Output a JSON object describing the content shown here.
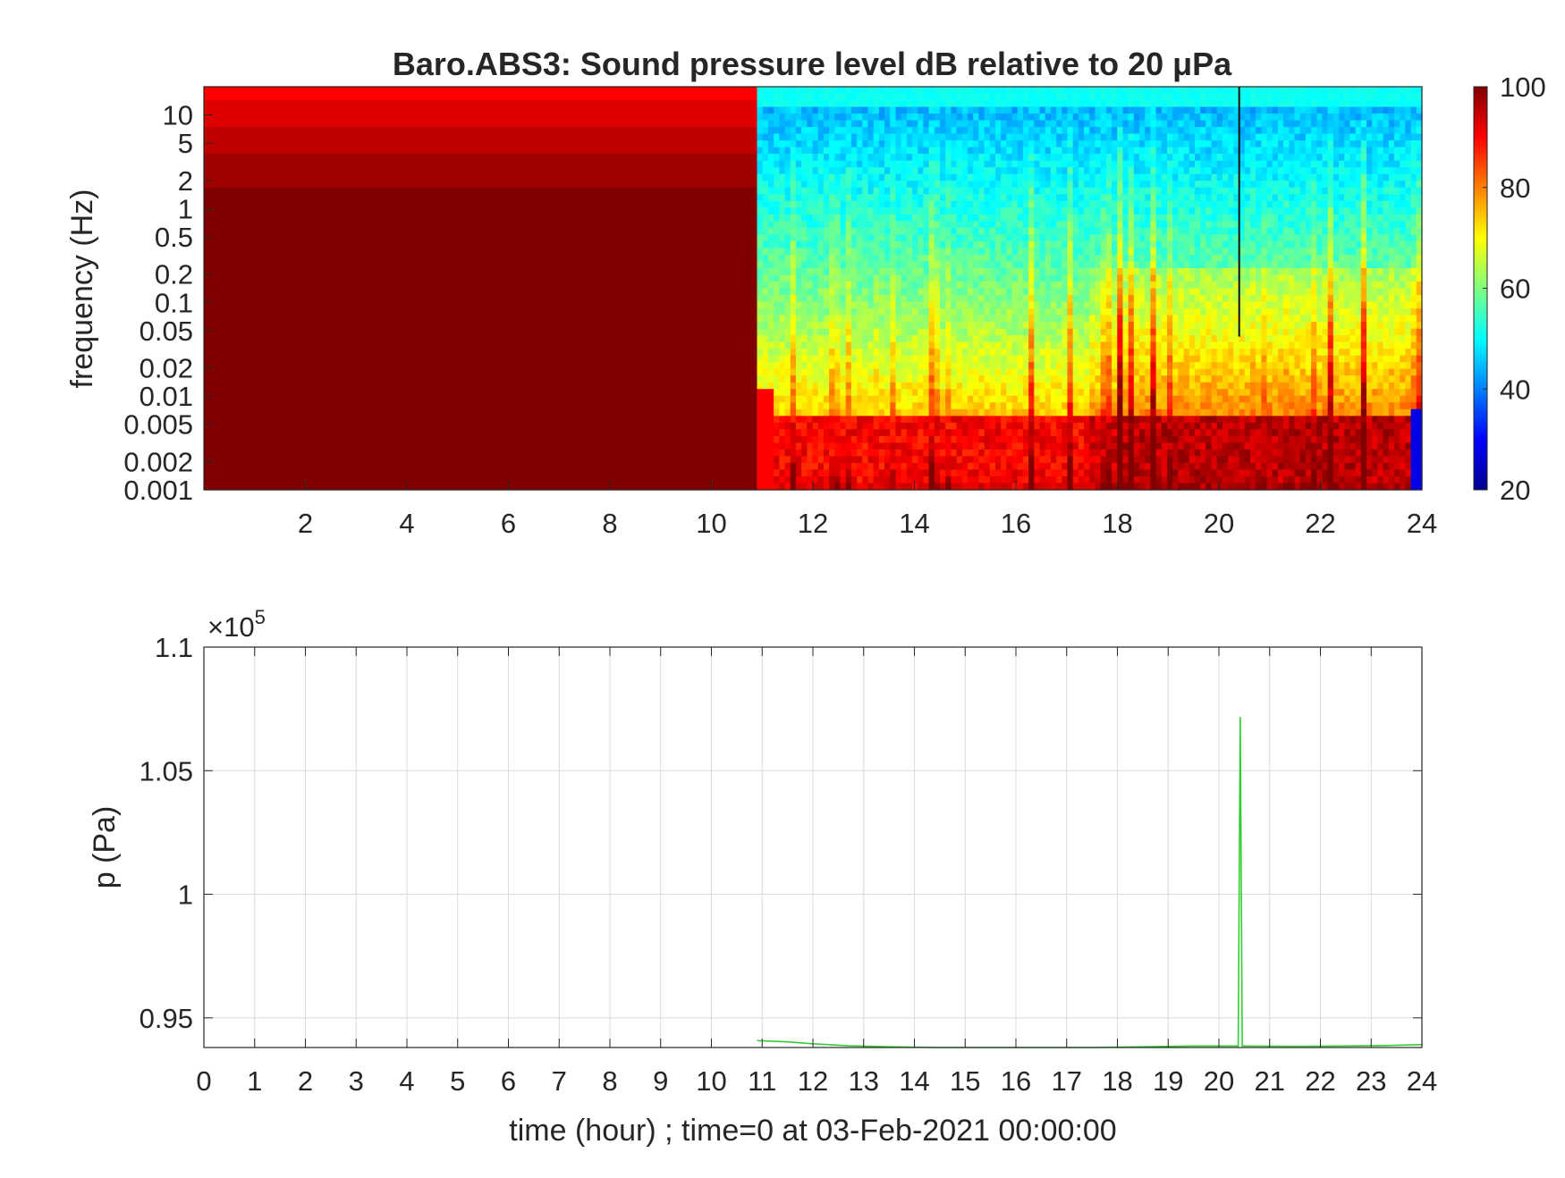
{
  "chart_data": [
    {
      "type": "heatmap",
      "title": "Baro.ABS3: Sound pressure level dB relative to 20 μPa",
      "ylabel": "frequency (Hz)",
      "xlabel": "",
      "xlim": [
        0,
        24
      ],
      "x_ticks": [
        2,
        4,
        6,
        8,
        10,
        12,
        14,
        16,
        18,
        20,
        22,
        24
      ],
      "y_scale": "log",
      "ylim": [
        0.001,
        20
      ],
      "y_ticks": [
        0.001,
        0.002,
        0.005,
        0.01,
        0.02,
        0.05,
        0.1,
        0.2,
        0.5,
        1,
        2,
        5,
        10
      ],
      "y_tick_labels": [
        "0.001",
        "0.002",
        "0.005",
        "0.01",
        "0.02",
        "0.05",
        "0.1",
        "0.2",
        "0.5",
        "1",
        "2",
        "5",
        "10"
      ],
      "colormap": "jet",
      "colorbar": {
        "min": 20,
        "max": 100,
        "ticks": [
          20,
          40,
          60,
          80,
          100
        ]
      },
      "data_start_hour": 10.9,
      "spike_hour": 20.4,
      "description_values": {
        "before_data_level_db": 100,
        "high_freq_band_level_db": 90
      }
    },
    {
      "type": "line",
      "title": "",
      "xlabel": "time (hour) ; time=0 at 03-Feb-2021 00:00:00",
      "ylabel": "p (Pa)",
      "xlim": [
        0,
        24
      ],
      "ylim": [
        0.938,
        1.1
      ],
      "y_multiplier_label": "×10",
      "y_multiplier_exp": "5",
      "x_ticks": [
        0,
        1,
        2,
        3,
        4,
        5,
        6,
        7,
        8,
        9,
        10,
        11,
        12,
        13,
        14,
        15,
        16,
        17,
        18,
        19,
        20,
        21,
        22,
        23,
        24
      ],
      "y_ticks": [
        0.95,
        1,
        1.05,
        1.1
      ],
      "y_tick_labels": [
        "0.95",
        "1",
        "1.05",
        "1.1"
      ],
      "grid": true,
      "series": [
        {
          "color": "#33cc33",
          "x": [
            10.9,
            11.5,
            12.0,
            12.7,
            13.5,
            14.5,
            15.5,
            16.5,
            17.5,
            18.5,
            19.5,
            20.38,
            20.42,
            20.46,
            20.5,
            21.5,
            22.5,
            23.3,
            24.0
          ],
          "y": [
            0.9408,
            0.9403,
            0.9395,
            0.9387,
            0.9383,
            0.938,
            0.938,
            0.938,
            0.938,
            0.9383,
            0.9386,
            0.9386,
            1.0717,
            0.9386,
            0.9386,
            0.9385,
            0.9386,
            0.9388,
            0.9392
          ]
        }
      ]
    }
  ]
}
